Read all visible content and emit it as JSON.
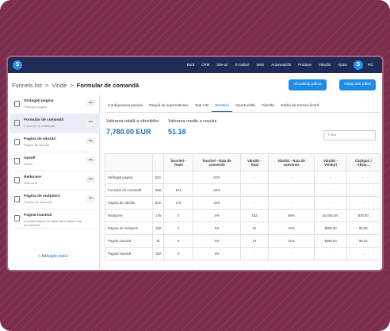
{
  "nav": {
    "logo": "S",
    "items": [
      "Bord",
      "CRM",
      "Site-uri",
      "E-mailuri",
      "SMS",
      "Automatizări",
      "Produse",
      "Vânzări",
      "Ajutor"
    ],
    "avatar": "S",
    "lang": "RO"
  },
  "breadcrumb": {
    "items": [
      "Funnels list",
      "Vinde",
      "Formular de comandă"
    ],
    "separator": ">"
  },
  "buttons": {
    "view": "Vizualizați pâlnia",
    "create": "Inițiați alte pâlnii"
  },
  "sidebar": {
    "steps": [
      {
        "title": "Strângeți pagina",
        "subtitle": "Strângeți pagina"
      },
      {
        "title": "Formular de comandă",
        "subtitle": "Formular de comandă"
      },
      {
        "title": "Pagina de vânzări",
        "subtitle": "Pagina de vânzări"
      },
      {
        "title": "Upsell",
        "subtitle": "Upsell"
      },
      {
        "title": "Reducere",
        "subtitle": "Reducere"
      },
      {
        "title": "Pagina de mulțumiri",
        "subtitle": "Thanks de mulțumiri"
      },
      {
        "title": "Pagină inactivă",
        "subtitle": "Această pagină nu afișă când pâlnia este dezactivată"
      }
    ],
    "menu": "•••",
    "add": "+ Adăugați pasul"
  },
  "tabs": {
    "items": [
      "Configurarea pasului",
      "Reguli de automatizare",
      "Test A/B",
      "Statistici",
      "Oportunități",
      "Vânzări",
      "Setări de termen limită"
    ],
    "active": 3
  },
  "stats": {
    "total_label": "Valoarea totală a vânzărilor",
    "total_value": "7,780.00 EUR",
    "average_label": "Valoarea medie a coșului",
    "average_value": "51.18",
    "date_placeholder": "Data"
  },
  "table": {
    "headers": [
      "Înscrieri - Toate",
      "Înscrieri - Rata de conversie",
      "Vânzări - Total",
      "Vânzări - Rata de conversie",
      "Vânzări - Venituri",
      "Câștiguri / Afișar..."
    ],
    "rows": [
      [
        "Strângeți pagina",
        "521",
        null,
        "52%",
        "-",
        "-",
        "-",
        "-"
      ],
      [
        "Formular de comandă",
        "986",
        "521",
        "53%",
        "-",
        "-",
        "-",
        "-"
      ],
      [
        "Pagina de vânzări",
        "521",
        "176",
        "33%",
        "-",
        "-",
        "-",
        "-"
      ],
      [
        "Reducere",
        "176",
        "0",
        "0%",
        "152",
        "86%",
        "$4,600.00",
        "$30.00"
      ],
      [
        "Pagina de mulțumiri",
        "152",
        "0",
        "0%",
        "31",
        "20%",
        "$909.00",
        "$3.00"
      ],
      [
        "Pagină inactivă",
        "31",
        "0",
        "0%",
        "13",
        "41%",
        "$398.00",
        "$9.32"
      ],
      [
        "Pagină inactivă",
        "152",
        "0",
        "0%",
        "-",
        "-",
        "-",
        "-"
      ]
    ]
  }
}
